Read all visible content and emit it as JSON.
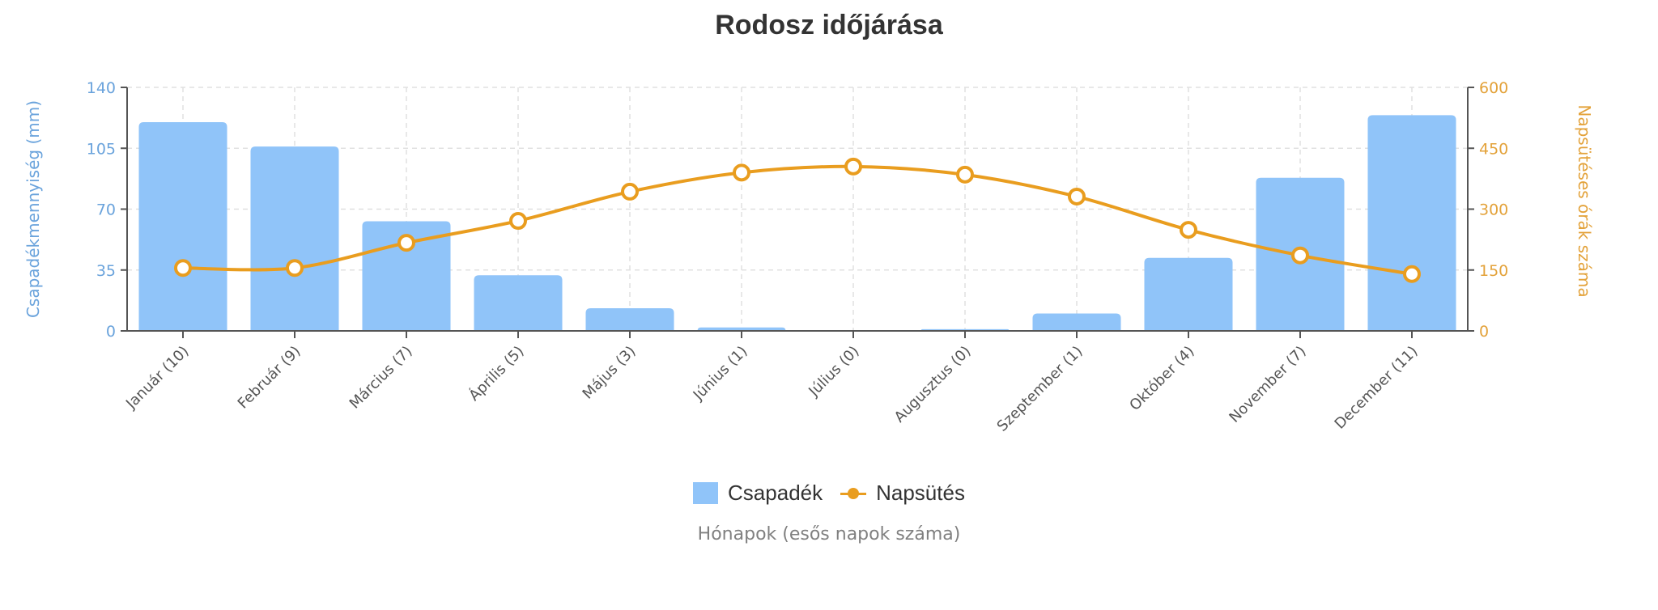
{
  "title": "Rodosz időjárása",
  "legend": {
    "items": [
      {
        "label": "Csapadék",
        "type": "bar",
        "color": "#90c4f9"
      },
      {
        "label": "Napsütés",
        "type": "line",
        "color": "#e99d1f"
      }
    ]
  },
  "x_axis_title": "Hónapok (esős napok száma)",
  "chart_data": {
    "type": "bar+line",
    "title": "Rodosz időjárása",
    "xlabel": "Hónapok (esős napok száma)",
    "categories": [
      "Január (10)",
      "Február (9)",
      "Március (7)",
      "Április (5)",
      "Május (3)",
      "Június (1)",
      "Július (0)",
      "Augusztus (0)",
      "Szeptember (1)",
      "Október (4)",
      "November (7)",
      "December (11)"
    ],
    "series": [
      {
        "name": "Csapadék",
        "type": "bar",
        "axis": "left",
        "color": "#90c4f9",
        "values": [
          120,
          106,
          63,
          32,
          13,
          2,
          0,
          1,
          10,
          42,
          88,
          124
        ]
      },
      {
        "name": "Napsütés",
        "type": "line",
        "axis": "right",
        "color": "#e99d1f",
        "values": [
          155,
          155,
          217,
          271,
          343,
          390,
          405,
          385,
          331,
          249,
          186,
          140
        ]
      }
    ],
    "y_left": {
      "label": "Csapadékmennyiség (mm)",
      "ticks": [
        0,
        35,
        70,
        105,
        140
      ],
      "range": [
        0,
        140
      ],
      "color": "#6aa3dc"
    },
    "y_right": {
      "label": "Napsütéses órák száma",
      "ticks": [
        0,
        150,
        300,
        450,
        600
      ],
      "range": [
        0,
        600
      ],
      "color": "#e3a23a"
    },
    "grid": true,
    "legend_position": "bottom"
  }
}
